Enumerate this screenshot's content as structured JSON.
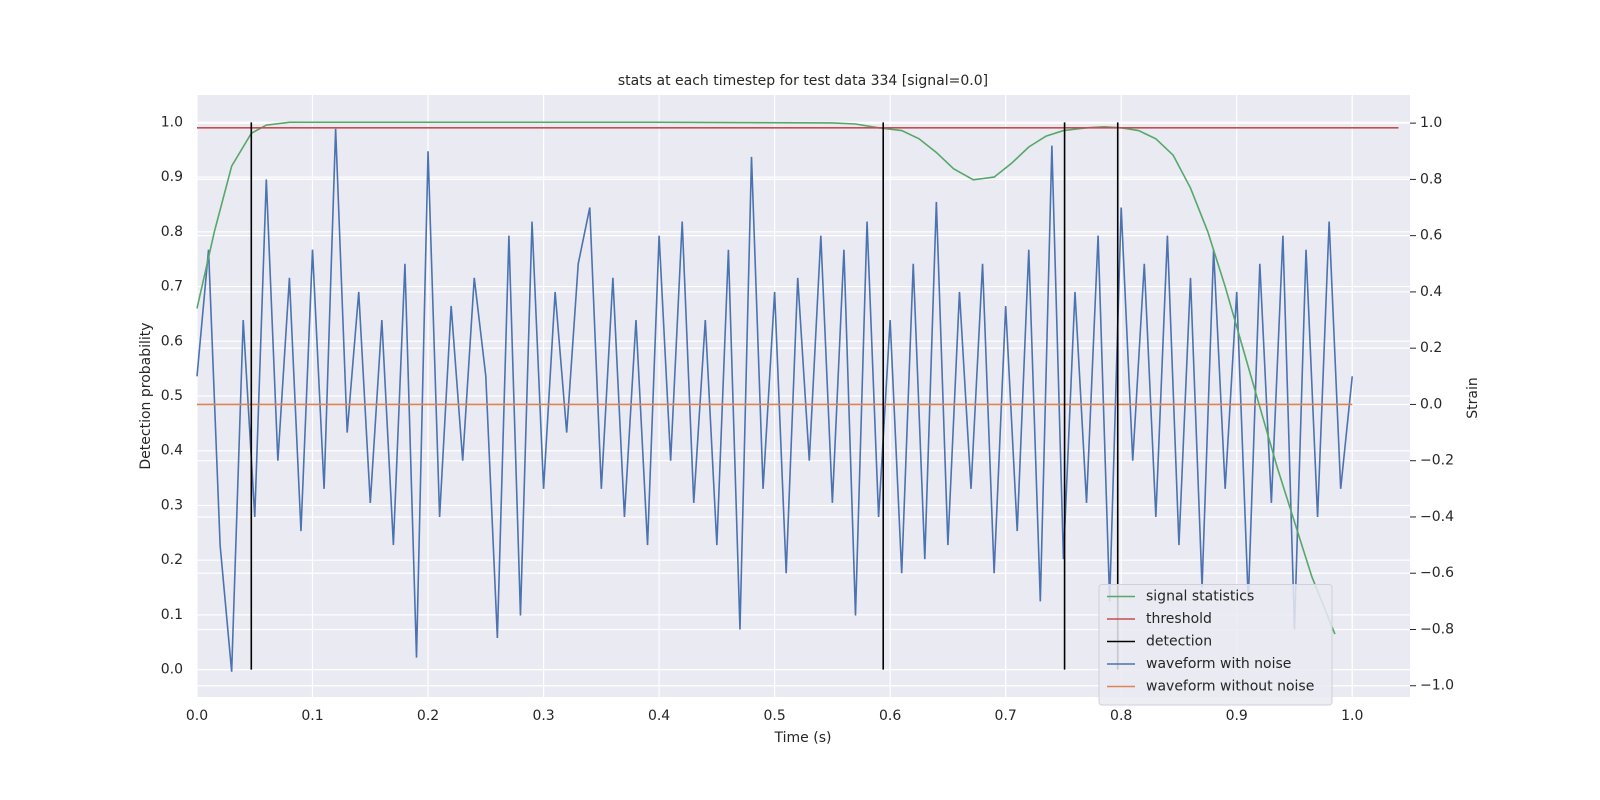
{
  "chart_data": {
    "type": "line",
    "title": "stats at each timestep for test data 334 [signal=0.0]",
    "xlabel": "Time (s)",
    "ylabel": "Detection probability",
    "y2label": "Strain",
    "xlim": [
      0,
      1.05
    ],
    "ylim": [
      -0.05,
      1.05
    ],
    "y2lim": [
      -1.04,
      1.1
    ],
    "xticks": [
      {
        "value": 0,
        "label": "0.0"
      },
      0.1,
      0.2,
      0.3,
      0.4,
      0.5,
      0.6,
      0.7,
      0.8,
      0.9,
      {
        "value": 1,
        "label": "1.0"
      }
    ],
    "yticks": [
      {
        "value": 0,
        "label": "0.0"
      },
      0.1,
      0.2,
      0.3,
      0.4,
      0.5,
      0.6,
      0.7,
      0.8,
      0.9,
      {
        "value": 1,
        "label": "1.0"
      }
    ],
    "y2ticks": [
      {
        "value": -1,
        "label": "−1.0"
      },
      {
        "value": -0.8,
        "label": "−0.8"
      },
      {
        "value": -0.6,
        "label": "−0.6"
      },
      {
        "value": -0.4,
        "label": "−0.4"
      },
      {
        "value": -0.2,
        "label": "−0.2"
      },
      {
        "value": 0,
        "label": "0.0"
      },
      0.2,
      0.4,
      0.6,
      0.8,
      {
        "value": 1,
        "label": "1.0"
      }
    ],
    "grid": true,
    "legend": "lower right",
    "series": [
      {
        "name": "signal statistics",
        "color": "#55a868",
        "axis": "y",
        "x": [
          0,
          0.015,
          0.03,
          0.047,
          0.06,
          0.08,
          0.2,
          0.4,
          0.55,
          0.57,
          0.59,
          0.61,
          0.625,
          0.64,
          0.655,
          0.672,
          0.69,
          0.705,
          0.72,
          0.735,
          0.75,
          0.77,
          0.785,
          0.8,
          0.815,
          0.83,
          0.845,
          0.86,
          0.875,
          0.89,
          0.905,
          0.92,
          0.935,
          0.95,
          0.965,
          0.985
        ],
        "values": [
          0.66,
          0.8,
          0.92,
          0.98,
          0.995,
          1.0,
          1.0,
          1.0,
          0.999,
          0.997,
          0.99,
          0.985,
          0.97,
          0.945,
          0.915,
          0.895,
          0.9,
          0.925,
          0.955,
          0.975,
          0.985,
          0.99,
          0.992,
          0.99,
          0.985,
          0.97,
          0.94,
          0.88,
          0.8,
          0.7,
          0.59,
          0.48,
          0.37,
          0.27,
          0.17,
          0.065
        ]
      },
      {
        "name": "threshold",
        "color": "#c44e52",
        "axis": "y",
        "x": [
          0,
          1.04
        ],
        "values": [
          0.99,
          0.99
        ]
      },
      {
        "name": "detection",
        "color": "#000000",
        "axis": "y",
        "x": [
          0.047,
          0.047,
          null,
          0.594,
          0.594,
          null,
          0.751,
          0.751,
          null,
          0.797,
          0.797
        ],
        "values": [
          0,
          1,
          null,
          0,
          1,
          null,
          0,
          1,
          null,
          0,
          1
        ]
      },
      {
        "name": "waveform with noise",
        "color": "#4c72b0",
        "axis": "y2",
        "x": [
          0,
          0.01,
          0.02,
          0.03,
          0.04,
          0.05,
          0.06,
          0.07,
          0.08,
          0.09,
          0.1,
          0.11,
          0.12,
          0.13,
          0.14,
          0.15,
          0.16,
          0.17,
          0.18,
          0.19,
          0.2,
          0.21,
          0.22,
          0.23,
          0.24,
          0.25,
          0.26,
          0.27,
          0.28,
          0.29,
          0.3,
          0.31,
          0.32,
          0.33,
          0.34,
          0.35,
          0.36,
          0.37,
          0.38,
          0.39,
          0.4,
          0.41,
          0.42,
          0.43,
          0.44,
          0.45,
          0.46,
          0.47,
          0.48,
          0.49,
          0.5,
          0.51,
          0.52,
          0.53,
          0.54,
          0.55,
          0.56,
          0.57,
          0.58,
          0.59,
          0.6,
          0.61,
          0.62,
          0.63,
          0.64,
          0.65,
          0.66,
          0.67,
          0.68,
          0.69,
          0.7,
          0.71,
          0.72,
          0.73,
          0.74,
          0.75,
          0.76,
          0.77,
          0.78,
          0.79,
          0.8,
          0.81,
          0.82,
          0.83,
          0.84,
          0.85,
          0.86,
          0.87,
          0.88,
          0.89,
          0.9,
          0.91,
          0.92,
          0.93,
          0.94,
          0.95,
          0.96,
          0.97,
          0.98,
          0.99,
          1.0
        ],
        "values": [
          0.1,
          0.55,
          -0.5,
          -0.95,
          0.3,
          -0.4,
          0.8,
          -0.2,
          0.45,
          -0.45,
          0.55,
          -0.3,
          0.98,
          -0.1,
          0.4,
          -0.35,
          0.3,
          -0.5,
          0.5,
          -0.9,
          0.9,
          -0.4,
          0.35,
          -0.2,
          0.45,
          0.1,
          -0.83,
          0.6,
          -0.75,
          0.65,
          -0.3,
          0.4,
          -0.1,
          0.5,
          0.7,
          -0.3,
          0.45,
          -0.4,
          0.3,
          -0.5,
          0.6,
          -0.2,
          0.65,
          -0.35,
          0.3,
          -0.5,
          0.55,
          -0.8,
          0.88,
          -0.3,
          0.4,
          -0.6,
          0.45,
          -0.2,
          0.6,
          -0.35,
          0.55,
          -0.75,
          0.65,
          -0.4,
          0.3,
          -0.6,
          0.5,
          -0.55,
          0.72,
          -0.5,
          0.4,
          -0.3,
          0.5,
          -0.6,
          0.35,
          -0.45,
          0.55,
          -0.7,
          0.92,
          -0.55,
          0.4,
          -0.35,
          0.6,
          -0.7,
          0.7,
          -0.2,
          0.5,
          -0.4,
          0.6,
          -0.5,
          0.45,
          -0.65,
          0.55,
          -0.3,
          0.4,
          -0.7,
          0.5,
          -0.35,
          0.6,
          -0.8,
          0.55,
          -0.4,
          0.65,
          -0.3,
          0.1
        ]
      },
      {
        "name": "waveform without noise",
        "color": "#dd8452",
        "axis": "y2",
        "x": [
          0,
          1
        ],
        "values": [
          0,
          0
        ]
      }
    ]
  }
}
